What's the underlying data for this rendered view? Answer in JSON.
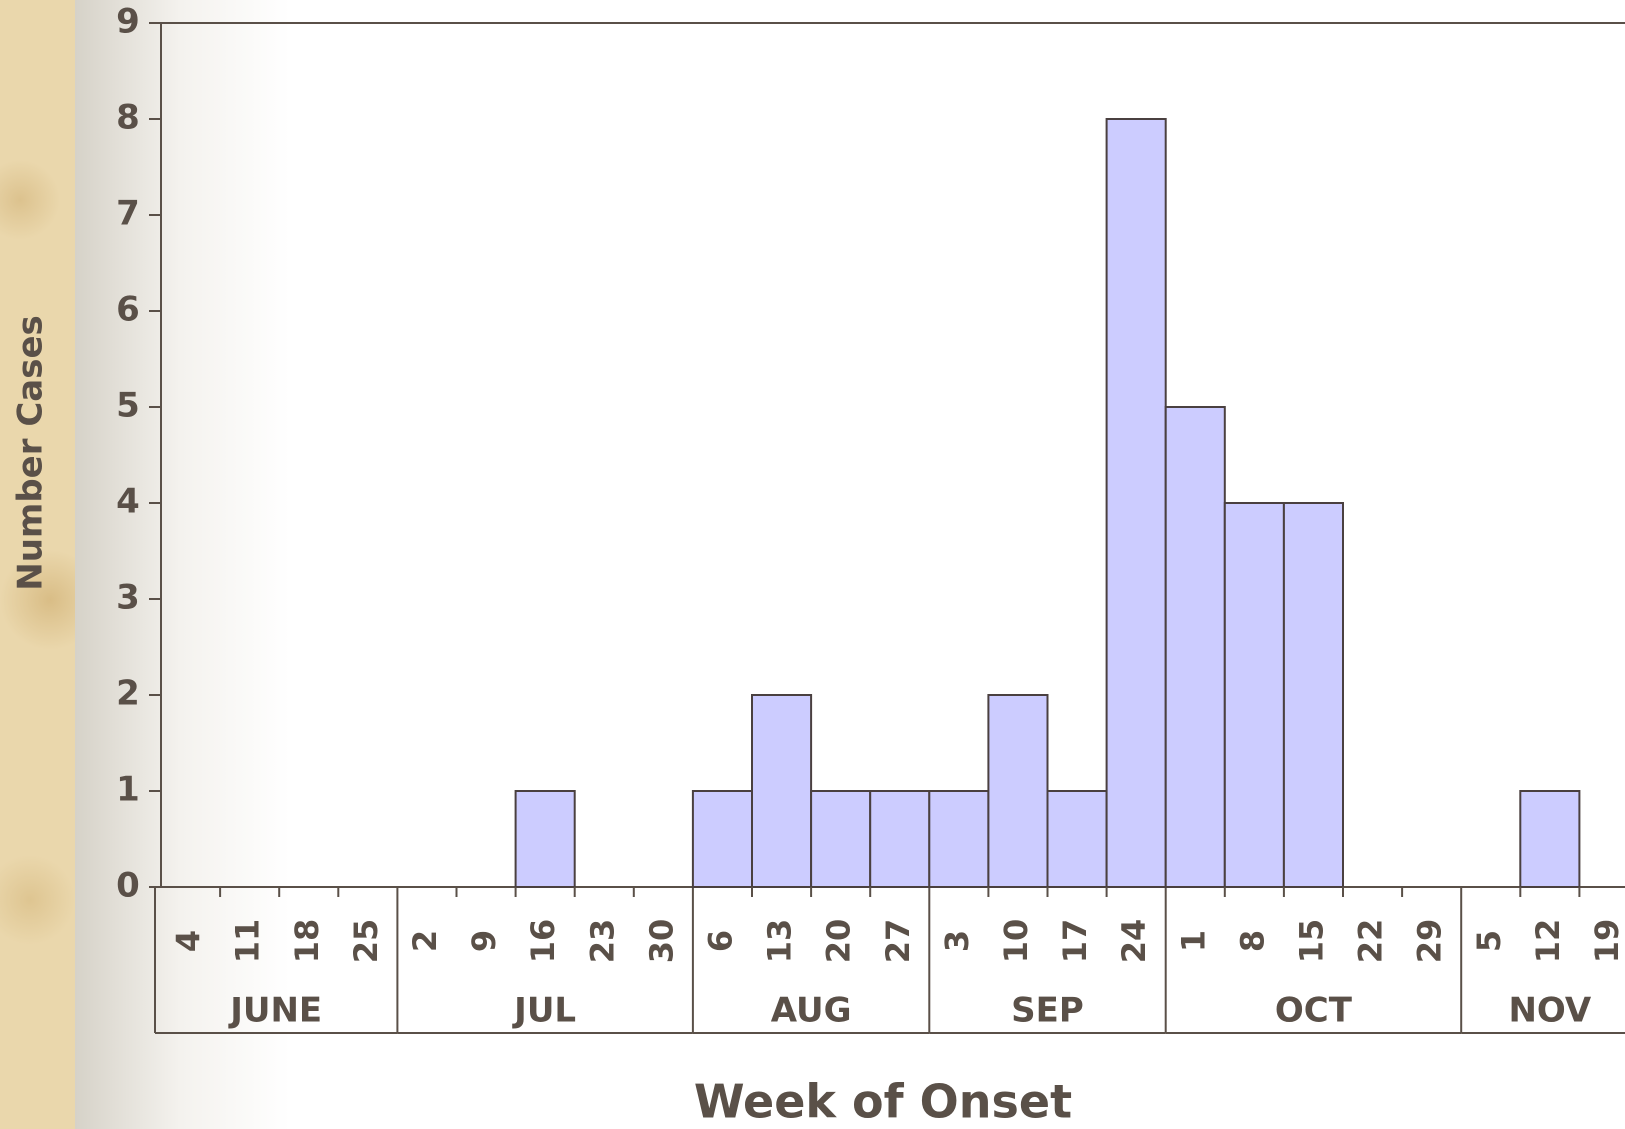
{
  "chart_data": {
    "type": "bar",
    "ylabel": "Number Cases",
    "xlabel": "Week of Onset",
    "color": "#ccccff",
    "ylim": [
      0,
      9
    ],
    "yticks": [
      0,
      1,
      2,
      3,
      4,
      5,
      6,
      7,
      8,
      9
    ],
    "groups": [
      {
        "name": "JUNE",
        "categories": [
          "4",
          "11",
          "18",
          "25"
        ],
        "values": [
          0,
          0,
          0,
          0
        ]
      },
      {
        "name": "JUL",
        "categories": [
          "2",
          "9",
          "16",
          "23",
          "30"
        ],
        "values": [
          0,
          0,
          1,
          0,
          0
        ]
      },
      {
        "name": "AUG",
        "categories": [
          "6",
          "13",
          "20",
          "27"
        ],
        "values": [
          1,
          2,
          1,
          1
        ]
      },
      {
        "name": "SEP",
        "categories": [
          "3",
          "10",
          "17",
          "24"
        ],
        "values": [
          1,
          2,
          1,
          8
        ]
      },
      {
        "name": "OCT",
        "categories": [
          "1",
          "8",
          "15",
          "22",
          "29"
        ],
        "values": [
          5,
          4,
          4,
          0,
          0
        ]
      },
      {
        "name": "NOV",
        "categories": [
          "5",
          "12",
          "19"
        ],
        "values": [
          0,
          1,
          0
        ]
      }
    ]
  }
}
